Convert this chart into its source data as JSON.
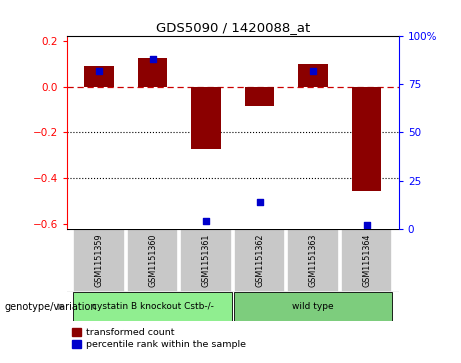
{
  "title": "GDS5090 / 1420088_at",
  "samples": [
    "GSM1151359",
    "GSM1151360",
    "GSM1151361",
    "GSM1151362",
    "GSM1151363",
    "GSM1151364"
  ],
  "red_values": [
    0.09,
    0.125,
    -0.27,
    -0.085,
    0.1,
    -0.455
  ],
  "blue_values_pct": [
    82,
    88,
    4,
    14,
    82,
    2
  ],
  "groups": [
    {
      "label": "cystatin B knockout Cstb-/-",
      "indices": [
        0,
        1,
        2
      ],
      "color": "#90ee90"
    },
    {
      "label": "wild type",
      "indices": [
        3,
        4,
        5
      ],
      "color": "#7dcd7d"
    }
  ],
  "ylim": [
    -0.62,
    0.22
  ],
  "y2lim": [
    0,
    100
  ],
  "yticks": [
    -0.6,
    -0.4,
    -0.2,
    0.0,
    0.2
  ],
  "y2ticks": [
    0,
    25,
    50,
    75,
    100
  ],
  "y2ticklabels": [
    "0",
    "25",
    "50",
    "75",
    "100%"
  ],
  "hline_y": 0.0,
  "dotted_lines": [
    -0.2,
    -0.4
  ],
  "bar_color": "#8b0000",
  "dot_color": "#0000cc",
  "background_color": "#ffffff",
  "legend_red_label": "transformed count",
  "legend_blue_label": "percentile rank within the sample",
  "genotype_label": "genotype/variation",
  "bar_width": 0.55,
  "dot_size": 18
}
